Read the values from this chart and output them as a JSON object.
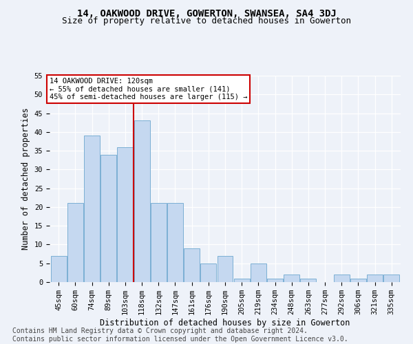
{
  "title": "14, OAKWOOD DRIVE, GOWERTON, SWANSEA, SA4 3DJ",
  "subtitle": "Size of property relative to detached houses in Gowerton",
  "xlabel": "Distribution of detached houses by size in Gowerton",
  "ylabel": "Number of detached properties",
  "categories": [
    "45sqm",
    "60sqm",
    "74sqm",
    "89sqm",
    "103sqm",
    "118sqm",
    "132sqm",
    "147sqm",
    "161sqm",
    "176sqm",
    "190sqm",
    "205sqm",
    "219sqm",
    "234sqm",
    "248sqm",
    "263sqm",
    "277sqm",
    "292sqm",
    "306sqm",
    "321sqm",
    "335sqm"
  ],
  "values": [
    7,
    21,
    39,
    34,
    36,
    43,
    21,
    21,
    9,
    5,
    7,
    1,
    5,
    1,
    2,
    1,
    0,
    2,
    1,
    2,
    2
  ],
  "bar_color": "#c5d8f0",
  "bar_edge_color": "#7bafd4",
  "ref_line_color": "#cc0000",
  "ref_bar_index": 5,
  "annotation_label": "14 OAKWOOD DRIVE: 120sqm",
  "annotation_line1": "← 55% of detached houses are smaller (141)",
  "annotation_line2": "45% of semi-detached houses are larger (115) →",
  "annotation_box_facecolor": "#ffffff",
  "annotation_box_edgecolor": "#cc0000",
  "ylim": [
    0,
    55
  ],
  "yticks": [
    0,
    5,
    10,
    15,
    20,
    25,
    30,
    35,
    40,
    45,
    50,
    55
  ],
  "footer_line1": "Contains HM Land Registry data © Crown copyright and database right 2024.",
  "footer_line2": "Contains public sector information licensed under the Open Government Licence v3.0.",
  "background_color": "#eef2f9",
  "grid_color": "#ffffff",
  "title_fontsize": 10,
  "subtitle_fontsize": 9,
  "axis_label_fontsize": 8.5,
  "tick_fontsize": 7.5,
  "annotation_fontsize": 7.5,
  "footer_fontsize": 7
}
